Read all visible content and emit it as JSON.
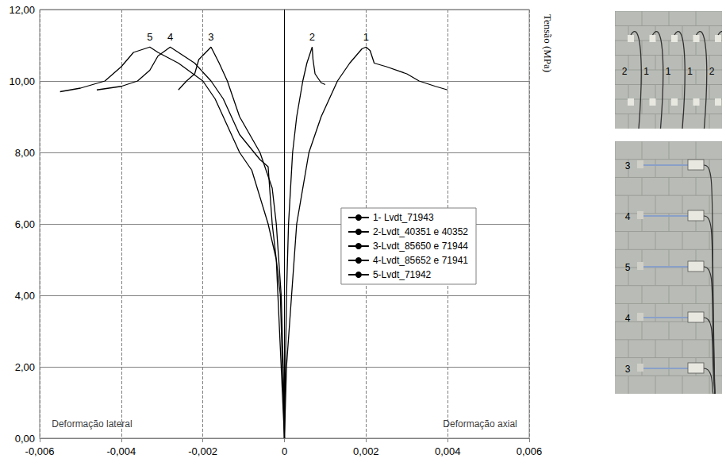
{
  "chart_data": {
    "type": "line",
    "ylabel": "Tensão (MPa)",
    "xlim": [
      -0.006,
      0.006
    ],
    "xticks": [
      {
        "value": -0.006,
        "label": "-0,006"
      },
      {
        "value": -0.004,
        "label": "-0,004"
      },
      {
        "value": -0.002,
        "label": "-0,002"
      },
      0,
      {
        "value": 0.002,
        "label": "0,002"
      },
      {
        "value": 0.004,
        "label": "0,004"
      },
      {
        "value": 0.006,
        "label": "0,006"
      }
    ],
    "ylim": [
      0,
      12
    ],
    "yticks": [
      {
        "value": 0,
        "label": "0,00"
      },
      {
        "value": 2,
        "label": "2,00"
      },
      {
        "value": 4,
        "label": "4,00"
      },
      {
        "value": 6,
        "label": "6,00"
      },
      {
        "value": 8,
        "label": "8,00"
      },
      {
        "value": 10,
        "label": "10,00"
      },
      {
        "value": 12,
        "label": "12,00"
      }
    ],
    "grid": true,
    "legend": "right",
    "annotations": [
      {
        "text": "Deformação lateral",
        "x": -0.0058,
        "y": 0.4
      },
      {
        "text": "Deformação axial",
        "x": 0.0058,
        "y": 0.4
      }
    ],
    "series": [
      {
        "name": "1- Lvdt_71943",
        "label": "1",
        "color": "#000000",
        "x": [
          0,
          5e-05,
          0.0003,
          0.0006,
          0.0009,
          0.0013,
          0.0016,
          0.0019,
          0.002,
          0.0021,
          0.0022,
          0.0025,
          0.003,
          0.0033,
          0.0037,
          0.004
        ],
        "values": [
          0,
          2,
          6,
          8,
          9,
          10,
          10.5,
          10.9,
          10.95,
          10.85,
          10.5,
          10.4,
          10.2,
          10.0,
          9.85,
          9.75
        ]
      },
      {
        "name": "2-Lvdt_40351 e 40352",
        "label": "2",
        "color": "#000000",
        "x": [
          0,
          5e-05,
          0.0001,
          0.0002,
          0.0003,
          0.00045,
          0.00055,
          0.00068,
          0.0007,
          0.00075,
          0.0009,
          0.001
        ],
        "values": [
          0,
          4,
          6,
          8,
          9,
          10,
          10.5,
          10.95,
          10.6,
          10.2,
          9.95,
          9.9
        ]
      },
      {
        "name": "3-Lvdt_85650 e 71944",
        "label": "3",
        "color": "#000000",
        "x": [
          0,
          -3e-05,
          -8e-05,
          -0.0002,
          -0.0003,
          -0.0006,
          -0.0011,
          -0.0014,
          -0.0016,
          -0.0018,
          -0.0021,
          -0.0022,
          -0.0024,
          -0.0026
        ],
        "values": [
          0,
          2,
          4,
          6,
          7,
          8,
          9,
          10,
          10.5,
          10.95,
          10.6,
          10.2,
          10.0,
          9.75
        ]
      },
      {
        "name": "4-Lvdt_85652 e 71941",
        "label": "4",
        "color": "#000000",
        "x": [
          0,
          -0.0001,
          -0.0003,
          -0.0004,
          -0.0006,
          -0.0011,
          -0.0015,
          -0.0018,
          -0.0022,
          -0.0026,
          -0.0028,
          -0.0031,
          -0.0033,
          -0.0036,
          -0.004,
          -0.0046
        ],
        "values": [
          0,
          4,
          6,
          7.6,
          7.8,
          8.5,
          9.5,
          10,
          10.5,
          10.8,
          10.95,
          10.7,
          10.3,
          10.0,
          9.85,
          9.75
        ]
      },
      {
        "name": "5-Lvdt_71942",
        "label": "5",
        "color": "#000000",
        "x": [
          0,
          -0.0002,
          -0.0004,
          -0.0008,
          -0.0011,
          -0.0015,
          -0.0017,
          -0.002,
          -0.0026,
          -0.0031,
          -0.0033,
          -0.0037,
          -0.004,
          -0.0044,
          -0.005,
          -0.0055
        ],
        "values": [
          0,
          5,
          6,
          7.5,
          8,
          9,
          9.5,
          10,
          10.5,
          10.8,
          10.95,
          10.8,
          10.4,
          10.0,
          9.8,
          9.7
        ]
      }
    ]
  },
  "photos": [
    {
      "labels": [
        "2",
        "1",
        "1",
        "1",
        "2"
      ]
    },
    {
      "labels": [
        "3",
        "4",
        "5",
        "4",
        "3"
      ]
    }
  ]
}
